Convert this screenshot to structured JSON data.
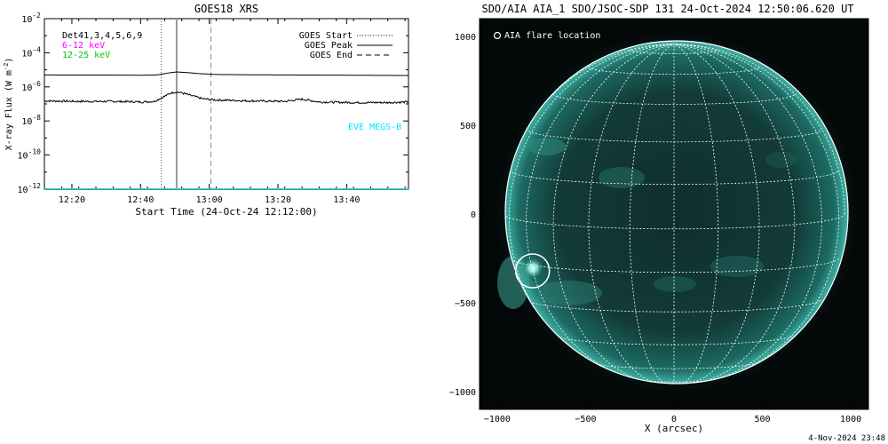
{
  "chart_data": [
    {
      "type": "line",
      "title": "GOES18 XRS",
      "xlabel": "Start Time (24-Oct-24 12:12:00)",
      "ylabel": "X-ray Flux (W m^-2)",
      "ylabel_main": "X-ray Flux (W m",
      "ylabel_sup": "-2",
      "ylabel_close": ")",
      "yscale": "log",
      "ylim": [
        1e-12,
        0.01
      ],
      "xlim_minutes_after_start": [
        0,
        106
      ],
      "x_ticks": [
        {
          "label": "12:20",
          "minute": 8
        },
        {
          "label": "12:40",
          "minute": 28
        },
        {
          "label": "13:00",
          "minute": 48
        },
        {
          "label": "13:20",
          "minute": 68
        },
        {
          "label": "13:40",
          "minute": 88
        }
      ],
      "y_ticks": [
        {
          "exp": "-2",
          "value": 0.01
        },
        {
          "exp": "-4",
          "value": 0.0001
        },
        {
          "exp": "-6",
          "value": 1e-06
        },
        {
          "exp": "-8",
          "value": 1e-08
        },
        {
          "exp": "-10",
          "value": 1e-10
        },
        {
          "exp": "-12",
          "value": 1e-12
        }
      ],
      "detector_text": "Det41,3,4,5,6,9",
      "channels": [
        {
          "label": "6-12 keV",
          "color": "#ff00ff"
        },
        {
          "label": "12-25 keV",
          "color": "#00ff00"
        }
      ],
      "eve_label": "EVE MEGS-B",
      "legend": {
        "placement": "top-right",
        "entries": [
          {
            "label": "GOES Start",
            "style": "dotted"
          },
          {
            "label": "GOES Peak",
            "style": "solid"
          },
          {
            "label": "GOES End",
            "style": "dashed"
          }
        ]
      },
      "markers_minutes": {
        "goes_start": 34,
        "goes_peak": 38.5,
        "goes_end": 48.5
      },
      "series": [
        {
          "name": "",
          "color": "#000000",
          "x": [
            0,
            10,
            20,
            28,
            33,
            36,
            38.5,
            41,
            45,
            50,
            60,
            70,
            80,
            90,
            100,
            106
          ],
          "y": [
            5e-06,
            4.9e-06,
            4.9e-06,
            4.8e-06,
            5e-06,
            6.5e-06,
            7.5e-06,
            7e-06,
            6e-06,
            5.3e-06,
            5.1e-06,
            5e-06,
            4.9e-06,
            4.8e-06,
            4.7e-06,
            4.6e-06
          ]
        },
        {
          "name": "",
          "color": "#000000",
          "x": [
            0,
            10,
            20,
            28,
            32,
            35,
            37,
            38.5,
            40,
            43,
            46,
            50,
            60,
            70,
            75,
            80,
            90,
            100,
            106
          ],
          "y": [
            1.5e-07,
            1.4e-07,
            1.4e-07,
            1.3e-07,
            1.4e-07,
            2.8e-07,
            4.5e-07,
            5e-07,
            4.4e-07,
            3e-07,
            2e-07,
            1.7e-07,
            1.5e-07,
            1.4e-07,
            1.9e-07,
            1.3e-07,
            1.2e-07,
            1.2e-07,
            1.3e-07
          ]
        },
        {
          "name": "EVE MEGS-B",
          "color": "#00e5ff",
          "x": [
            0,
            106
          ],
          "y": [
            1e-12,
            1e-12
          ]
        }
      ]
    },
    {
      "type": "image",
      "title": "SDO/AIA AIA_1 SDO/JSOC-SDP 131 24-Oct-2024 12:50:06.620 UT",
      "xlabel": "X (arcsec)",
      "ylabel": "",
      "xlim": [
        -1100,
        1100
      ],
      "ylim": [
        -1100,
        1100
      ],
      "x_ticks": [
        -1000,
        -500,
        0,
        500,
        1000
      ],
      "y_ticks": [
        1000,
        500,
        0,
        -500,
        -1000
      ],
      "legend": {
        "placement": "top-left",
        "entries": [
          {
            "label": "AIA flare location",
            "marker": "circle"
          }
        ]
      },
      "flare_location_arcsec": {
        "x": -800,
        "y": -320
      },
      "solar_radius_arcsec": 965,
      "footer": "4-Nov-2024 23:48"
    }
  ]
}
